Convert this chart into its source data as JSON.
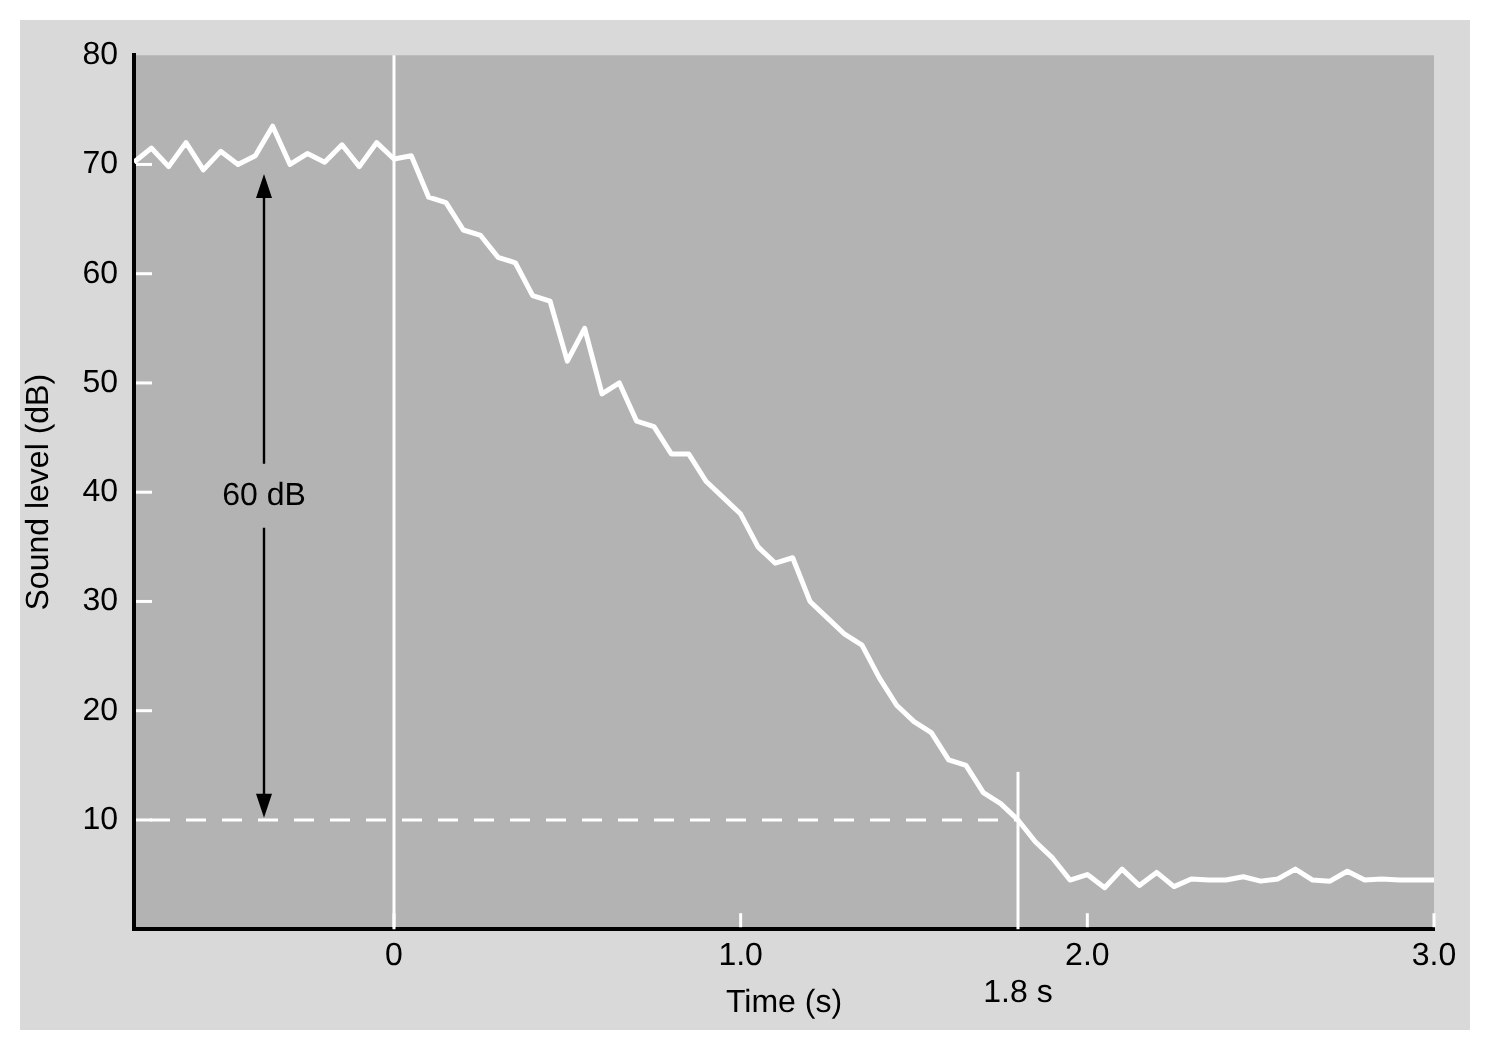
{
  "chart_data": {
    "type": "line",
    "xlabel": "Time (s)",
    "ylabel": "Sound level (dB)",
    "xlim": [
      -0.75,
      3.0
    ],
    "ylim": [
      0,
      80
    ],
    "xticks": [
      0,
      {
        "value": 1,
        "label": "1.0"
      },
      {
        "value": 2,
        "label": "2.0"
      },
      {
        "value": 3,
        "label": "3.0"
      }
    ],
    "yticks": [
      10,
      20,
      30,
      40,
      50,
      60,
      70,
      80
    ],
    "grid": false,
    "legend": false,
    "marker": "none",
    "line_style": "solid",
    "series": [
      {
        "color": "#ffffff",
        "x": [
          -0.75,
          -0.7,
          -0.65,
          -0.6,
          -0.55,
          -0.5,
          -0.45,
          -0.4,
          -0.35,
          -0.3,
          -0.25,
          -0.2,
          -0.15,
          -0.1,
          -0.05,
          0,
          0.05,
          0.1,
          0.15,
          0.2,
          0.25,
          0.3,
          0.35,
          0.4,
          0.45,
          0.5,
          0.55,
          0.6,
          0.65,
          0.7,
          0.75,
          0.8,
          0.85,
          0.9,
          0.95,
          1,
          1.05,
          1.1,
          1.15,
          1.2,
          1.25,
          1.3,
          1.35,
          1.4,
          1.45,
          1.5,
          1.55,
          1.6,
          1.65,
          1.7,
          1.75,
          1.8,
          1.85,
          1.9,
          1.95,
          2,
          2.05,
          2.1,
          2.15,
          2.2,
          2.25,
          2.3,
          2.35,
          2.4,
          2.45,
          2.5,
          2.55,
          2.6,
          2.65,
          2.7,
          2.75,
          2.8,
          2.85,
          2.9,
          2.95,
          3
        ],
        "values": [
          70.2,
          71.5,
          69.8,
          72,
          69.5,
          71.2,
          70,
          70.8,
          73.5,
          70,
          71,
          70.2,
          71.8,
          69.8,
          72,
          70.5,
          70.8,
          67,
          66.5,
          64,
          63.5,
          61.5,
          61,
          58,
          57.5,
          52,
          55,
          49,
          50,
          46.5,
          46,
          43.5,
          43.5,
          41,
          39.5,
          38,
          35,
          33.5,
          34,
          30,
          28.5,
          27,
          26,
          23,
          20.5,
          19,
          18,
          15.5,
          15,
          12.5,
          11.5,
          10,
          8,
          6.5,
          4.5,
          5,
          3.8,
          5.5,
          4,
          5.2,
          3.9,
          4.6,
          4.5,
          4.5,
          4.8,
          4.4,
          4.6,
          5.5,
          4.5,
          4.4,
          5.3,
          4.5,
          4.6,
          4.5,
          4.5,
          4.5
        ]
      }
    ],
    "ref_lines": [
      {
        "axis": "x",
        "value": 0,
        "color": "#ffffff",
        "line_style": "solid"
      },
      {
        "axis": "x",
        "value": 1.8,
        "label": "1.8 s",
        "color": "#ffffff",
        "line_style": "solid"
      },
      {
        "axis": "y",
        "value": 10,
        "color": "#ffffff",
        "line_style": "dashed"
      }
    ],
    "annotations": [
      "60 dB"
    ]
  }
}
